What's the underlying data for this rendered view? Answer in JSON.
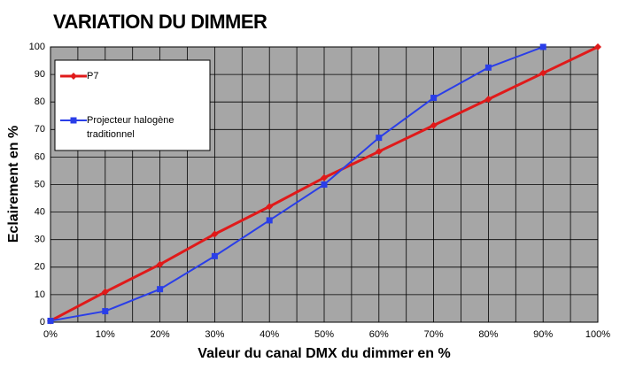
{
  "chart_data": {
    "type": "line",
    "title": "VARIATION DU DIMMER",
    "xlabel": "Valeur du canal DMX du dimmer en %",
    "ylabel": "Eclairement en %",
    "x": [
      0,
      10,
      20,
      30,
      40,
      50,
      60,
      70,
      80,
      90,
      100
    ],
    "series": [
      {
        "name": "P7",
        "color": "#e01a1a",
        "marker": "diamond",
        "values": [
          0.5,
          11,
          21,
          32,
          42,
          52.5,
          62,
          71.5,
          81,
          90.5,
          100
        ]
      },
      {
        "name": "Projecteur halogène traditionnel",
        "color": "#2a3ee8",
        "marker": "square",
        "values": [
          0.5,
          4,
          12,
          24,
          37,
          50,
          67,
          81.5,
          92.5,
          100,
          null
        ]
      }
    ],
    "xlim": [
      0,
      100
    ],
    "ylim": [
      0,
      100
    ],
    "xticks": [
      {
        "value": 0,
        "label": "0%"
      },
      {
        "value": 10,
        "label": "10%"
      },
      {
        "value": 20,
        "label": "20%"
      },
      {
        "value": 30,
        "label": "30%"
      },
      {
        "value": 40,
        "label": "40%"
      },
      {
        "value": 50,
        "label": "50%"
      },
      {
        "value": 60,
        "label": "60%"
      },
      {
        "value": 70,
        "label": "70%"
      },
      {
        "value": 80,
        "label": "80%"
      },
      {
        "value": 90,
        "label": "90%"
      },
      {
        "value": 100,
        "label": "100%"
      }
    ],
    "x_minor_grid": [
      5,
      15,
      25,
      35,
      45,
      55,
      65,
      75,
      85,
      95
    ],
    "yticks": [
      0,
      10,
      20,
      30,
      40,
      50,
      60,
      70,
      80,
      90,
      100
    ],
    "grid": true,
    "legend": "upper left",
    "background": "#a6a6a6"
  }
}
